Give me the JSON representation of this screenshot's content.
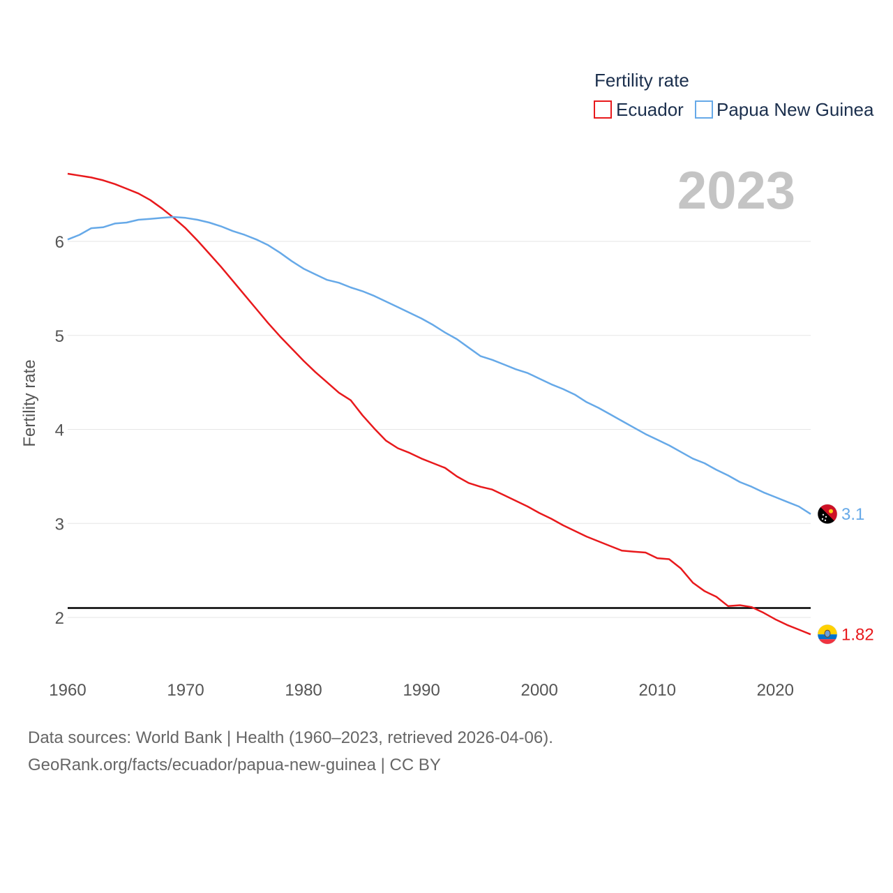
{
  "chart_data": {
    "type": "line",
    "title": "",
    "xlabel": "",
    "ylabel": "Fertility rate",
    "year_label": "2023",
    "xlim": [
      1960,
      2023
    ],
    "ylim": [
      1.5,
      6.8
    ],
    "x_ticks": [
      1960,
      1970,
      1980,
      1990,
      2000,
      2010,
      2020
    ],
    "y_ticks": [
      2,
      3,
      4,
      5,
      6
    ],
    "grid": true,
    "legend": {
      "title": "Fertility rate",
      "placement": "top-right"
    },
    "reference_line": {
      "y": 2.1,
      "color": "#000000"
    },
    "x": [
      1960,
      1961,
      1962,
      1963,
      1964,
      1965,
      1966,
      1967,
      1968,
      1969,
      1970,
      1971,
      1972,
      1973,
      1974,
      1975,
      1976,
      1977,
      1978,
      1979,
      1980,
      1981,
      1982,
      1983,
      1984,
      1985,
      1986,
      1987,
      1988,
      1989,
      1990,
      1991,
      1992,
      1993,
      1994,
      1995,
      1996,
      1997,
      1998,
      1999,
      2000,
      2001,
      2002,
      2003,
      2004,
      2005,
      2006,
      2007,
      2008,
      2009,
      2010,
      2011,
      2012,
      2013,
      2014,
      2015,
      2016,
      2017,
      2018,
      2019,
      2020,
      2021,
      2022,
      2023
    ],
    "series": [
      {
        "name": "Ecuador",
        "color": "#e8191c",
        "end_label": "1.82",
        "flag": "ecuador-flag",
        "values": [
          6.72,
          6.7,
          6.68,
          6.65,
          6.61,
          6.56,
          6.51,
          6.44,
          6.35,
          6.25,
          6.14,
          6.01,
          5.87,
          5.73,
          5.58,
          5.43,
          5.28,
          5.13,
          4.99,
          4.86,
          4.73,
          4.61,
          4.5,
          4.39,
          4.31,
          4.15,
          4.01,
          3.88,
          3.8,
          3.75,
          3.69,
          3.64,
          3.59,
          3.5,
          3.43,
          3.39,
          3.36,
          3.3,
          3.24,
          3.18,
          3.11,
          3.05,
          2.98,
          2.92,
          2.86,
          2.81,
          2.76,
          2.71,
          2.7,
          2.69,
          2.63,
          2.62,
          2.52,
          2.37,
          2.28,
          2.22,
          2.12,
          2.13,
          2.11,
          2.05,
          1.98,
          1.92,
          1.87,
          1.82
        ]
      },
      {
        "name": "Papua New Guinea",
        "color": "#66a9e8",
        "end_label": "3.1",
        "flag": "papua-new-guinea-flag",
        "values": [
          6.02,
          6.07,
          6.14,
          6.15,
          6.19,
          6.2,
          6.23,
          6.24,
          6.25,
          6.26,
          6.25,
          6.23,
          6.2,
          6.16,
          6.11,
          6.07,
          6.02,
          5.96,
          5.88,
          5.79,
          5.71,
          5.65,
          5.59,
          5.56,
          5.51,
          5.47,
          5.42,
          5.36,
          5.3,
          5.24,
          5.18,
          5.11,
          5.03,
          4.96,
          4.87,
          4.78,
          4.74,
          4.69,
          4.64,
          4.6,
          4.54,
          4.48,
          4.43,
          4.37,
          4.29,
          4.23,
          4.16,
          4.09,
          4.02,
          3.95,
          3.89,
          3.83,
          3.76,
          3.69,
          3.64,
          3.57,
          3.51,
          3.44,
          3.39,
          3.33,
          3.28,
          3.23,
          3.18,
          3.1
        ]
      }
    ]
  },
  "footer": {
    "source_line": "Data sources: World Bank | Health (1960–2023, retrieved 2026-04-06).",
    "url_line": "GeoRank.org/facts/ecuador/papua-new-guinea | CC BY"
  }
}
